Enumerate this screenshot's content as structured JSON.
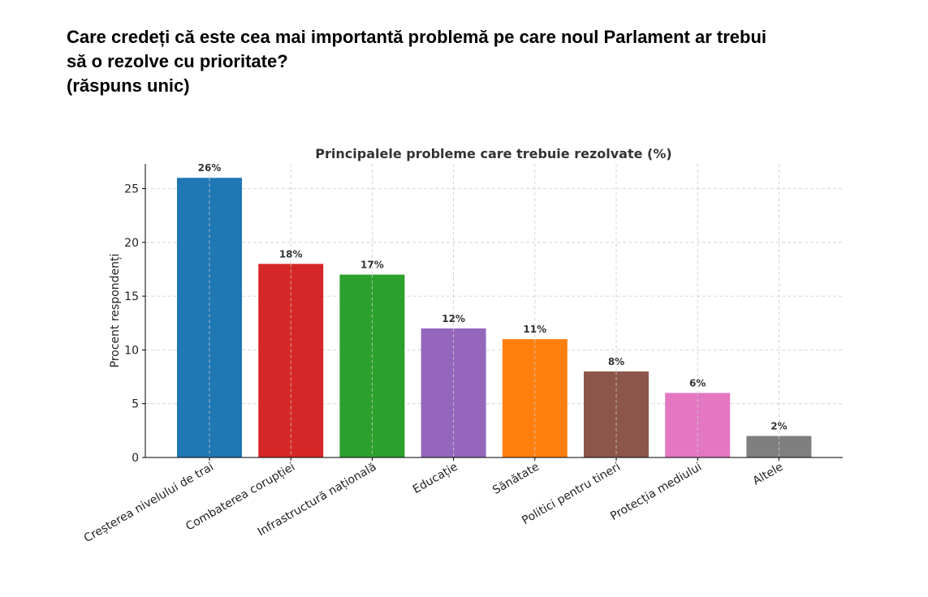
{
  "question": {
    "line1": "Care credeți că este cea mai importantă problemă pe care noul Parlament ar trebui",
    "line2": "să o rezolve cu prioritate?",
    "line3": "(răspuns unic)"
  },
  "chart_data": {
    "type": "bar",
    "title": "Principalele probleme care trebuie rezolvate (%)",
    "xlabel": "",
    "ylabel": "Procent respondenți",
    "ylim": [
      0,
      27.3
    ],
    "yticks": [
      0,
      5,
      10,
      15,
      20,
      25
    ],
    "grid": true,
    "categories": [
      "Creșterea nivelului de trai",
      "Combaterea corupției",
      "Infrastructură națională",
      "Educație",
      "Sănătate",
      "Politici pentru tineri",
      "Protecția mediului",
      "Altele"
    ],
    "values": [
      26,
      18,
      17,
      12,
      11,
      8,
      6,
      2
    ],
    "data_labels": [
      "26%",
      "18%",
      "17%",
      "12%",
      "11%",
      "8%",
      "6%",
      "2%"
    ],
    "colors": [
      "#1f77b4",
      "#d62728",
      "#2ca02c",
      "#9467bd",
      "#ff7f0e",
      "#8c564b",
      "#e377c2",
      "#7f7f7f"
    ]
  }
}
